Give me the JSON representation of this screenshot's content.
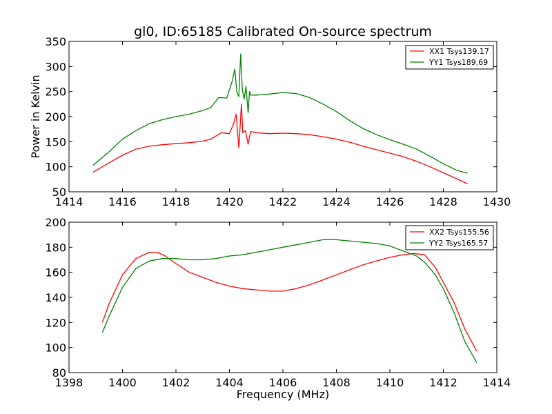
{
  "chart_data": [
    {
      "type": "line",
      "title": "gl0, ID:65185 Calibrated On-source spectrum",
      "xlabel": "",
      "ylabel": "Power in Kelvin",
      "xlim": [
        1414,
        1430
      ],
      "ylim": [
        50,
        350
      ],
      "xticks": [
        "1414",
        "1416",
        "1418",
        "1420",
        "1422",
        "1424",
        "1426",
        "1428",
        "1430"
      ],
      "yticks": [
        "50",
        "100",
        "150",
        "200",
        "250",
        "300",
        "350"
      ],
      "grid": false,
      "legend_position": "top-right",
      "series": [
        {
          "name": "XX1 Tsys139.17",
          "color": "#ff0000",
          "x": [
            1414.9,
            1415.5,
            1416.0,
            1416.5,
            1417.0,
            1417.5,
            1418.0,
            1418.5,
            1419.0,
            1419.3,
            1419.7,
            1420.0,
            1420.15,
            1420.25,
            1420.35,
            1420.4,
            1420.45,
            1420.5,
            1420.6,
            1420.7,
            1420.75,
            1420.8,
            1421.0,
            1421.5,
            1422.0,
            1422.5,
            1423.0,
            1423.5,
            1424.0,
            1424.5,
            1425.0,
            1425.5,
            1426.0,
            1426.5,
            1427.0,
            1427.5,
            1428.0,
            1428.5,
            1428.9
          ],
          "values": [
            89,
            108,
            123,
            135,
            141,
            144,
            146,
            148,
            151,
            155,
            168,
            166,
            185,
            205,
            138,
            180,
            225,
            168,
            172,
            145,
            160,
            170,
            168,
            166,
            167,
            166,
            164,
            160,
            155,
            149,
            141,
            134,
            127,
            120,
            111,
            100,
            88,
            76,
            66
          ]
        },
        {
          "name": "YY1 Tsys189.69",
          "color": "#008000",
          "x": [
            1414.9,
            1415.5,
            1416.0,
            1416.5,
            1417.0,
            1417.5,
            1418.0,
            1418.5,
            1419.0,
            1419.3,
            1419.6,
            1419.9,
            1420.1,
            1420.2,
            1420.28,
            1420.35,
            1420.42,
            1420.48,
            1420.55,
            1420.62,
            1420.7,
            1420.75,
            1420.8,
            1421.0,
            1421.5,
            1422.0,
            1422.5,
            1423.0,
            1423.5,
            1424.0,
            1424.5,
            1425.0,
            1425.5,
            1426.0,
            1426.5,
            1427.0,
            1427.5,
            1428.0,
            1428.5,
            1428.9
          ],
          "values": [
            103,
            130,
            155,
            172,
            186,
            194,
            200,
            205,
            212,
            218,
            238,
            237,
            270,
            295,
            248,
            240,
            325,
            255,
            235,
            260,
            208,
            250,
            243,
            243,
            245,
            248,
            246,
            238,
            225,
            210,
            192,
            176,
            164,
            154,
            145,
            135,
            121,
            106,
            93,
            87
          ]
        }
      ]
    },
    {
      "type": "line",
      "title": "",
      "xlabel": "Frequency (MHz)",
      "ylabel": "",
      "xlim": [
        1398,
        1414
      ],
      "ylim": [
        80,
        200
      ],
      "xticks": [
        "1398",
        "1400",
        "1402",
        "1404",
        "1406",
        "1408",
        "1410",
        "1412",
        "1414"
      ],
      "yticks": [
        "80",
        "100",
        "120",
        "140",
        "160",
        "180",
        "200"
      ],
      "grid": false,
      "legend_position": "top-right",
      "series": [
        {
          "name": "XX2 Tsys155.56",
          "color": "#ff0000",
          "x": [
            1399.25,
            1399.5,
            1400.0,
            1400.5,
            1401.0,
            1401.3,
            1401.6,
            1402.0,
            1402.5,
            1403.0,
            1403.5,
            1404.0,
            1404.5,
            1405.0,
            1405.5,
            1406.0,
            1406.5,
            1407.0,
            1407.5,
            1408.0,
            1408.5,
            1409.0,
            1409.5,
            1410.0,
            1410.5,
            1410.9,
            1411.3,
            1411.7,
            1412.0,
            1412.4,
            1412.8,
            1413.25
          ],
          "values": [
            120,
            135,
            158,
            171,
            176,
            176,
            173,
            167,
            160,
            156,
            152,
            149,
            147,
            146,
            145,
            145,
            147,
            150,
            154,
            158,
            162,
            166,
            169,
            172,
            174,
            175,
            174,
            164,
            152,
            136,
            115,
            97
          ]
        },
        {
          "name": "YY2 Tsys165.57",
          "color": "#008000",
          "x": [
            1399.25,
            1399.5,
            1400.0,
            1400.5,
            1401.0,
            1401.5,
            1402.0,
            1402.5,
            1403.0,
            1403.5,
            1404.0,
            1404.5,
            1405.0,
            1405.5,
            1406.0,
            1406.5,
            1407.0,
            1407.5,
            1408.0,
            1408.5,
            1409.0,
            1409.5,
            1410.0,
            1410.5,
            1411.0,
            1411.3,
            1411.7,
            1412.0,
            1412.4,
            1412.8,
            1413.25
          ],
          "values": [
            112,
            125,
            148,
            163,
            169,
            171,
            171,
            170,
            170,
            171,
            173,
            174,
            176,
            178,
            180,
            182,
            184,
            186,
            186,
            185,
            184,
            183,
            181,
            177,
            173,
            168,
            158,
            147,
            128,
            105,
            88
          ]
        }
      ]
    }
  ]
}
